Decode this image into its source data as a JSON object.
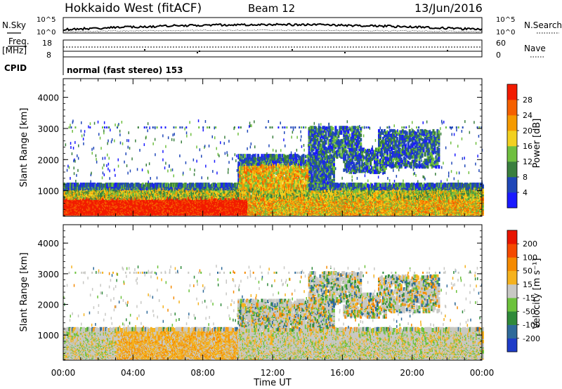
{
  "header": {
    "title": "Hokkaido West (fitACF)",
    "beam": "Beam 12",
    "date": "13/Jun/2016"
  },
  "status_panels": {
    "nsky_label": "N.Sky",
    "nsearch_label": "N.Search",
    "nsky_ticks": [
      "10^5",
      "10^0"
    ],
    "freq_label": "Freq.",
    "freq_unit": "[MHz]",
    "freq_ticks": [
      "18",
      "8"
    ],
    "nave_label": "Nave",
    "nave_ticks": [
      "60",
      "0"
    ],
    "cpid_label": "CPID",
    "cpid_text": "normal (fast stereo) 153"
  },
  "chart_data": [
    {
      "type": "heatmap",
      "ylabel": "Slant Range [km]",
      "xlabel": "",
      "ylim": [
        180,
        4600
      ],
      "xlim": [
        0,
        24
      ],
      "y_ticks": [
        1000,
        2000,
        3000,
        4000
      ],
      "colorbar": {
        "label": "Power [dB]",
        "ticks": [
          "4",
          "8",
          "12",
          "16",
          "20",
          "24",
          "28"
        ],
        "colors": [
          "#1a1aff",
          "#1f47b8",
          "#3a7f3e",
          "#6fbf3f",
          "#f2d020",
          "#f59a00",
          "#f56000",
          "#f21b00"
        ]
      }
    },
    {
      "type": "heatmap",
      "ylabel": "Slant Range [km]",
      "xlabel": "Time UT",
      "ylim": [
        180,
        4600
      ],
      "xlim": [
        0,
        24
      ],
      "y_ticks": [
        1000,
        2000,
        3000,
        4000
      ],
      "x_ticks": [
        "00:00",
        "04:00",
        "08:00",
        "12:00",
        "16:00",
        "20:00",
        "00:00"
      ],
      "colorbar": {
        "label": "Velocity [m s⁻¹]",
        "ticks": [
          "200",
          "100",
          "50",
          "15",
          "-15",
          "-50",
          "-100",
          "-200"
        ],
        "colors": [
          "#1e3cc8",
          "#2e6a9a",
          "#2f8a3a",
          "#6cc23c",
          "#c8c8c4",
          "#f5b21e",
          "#f58a00",
          "#f54a00",
          "#e81400"
        ]
      }
    }
  ]
}
